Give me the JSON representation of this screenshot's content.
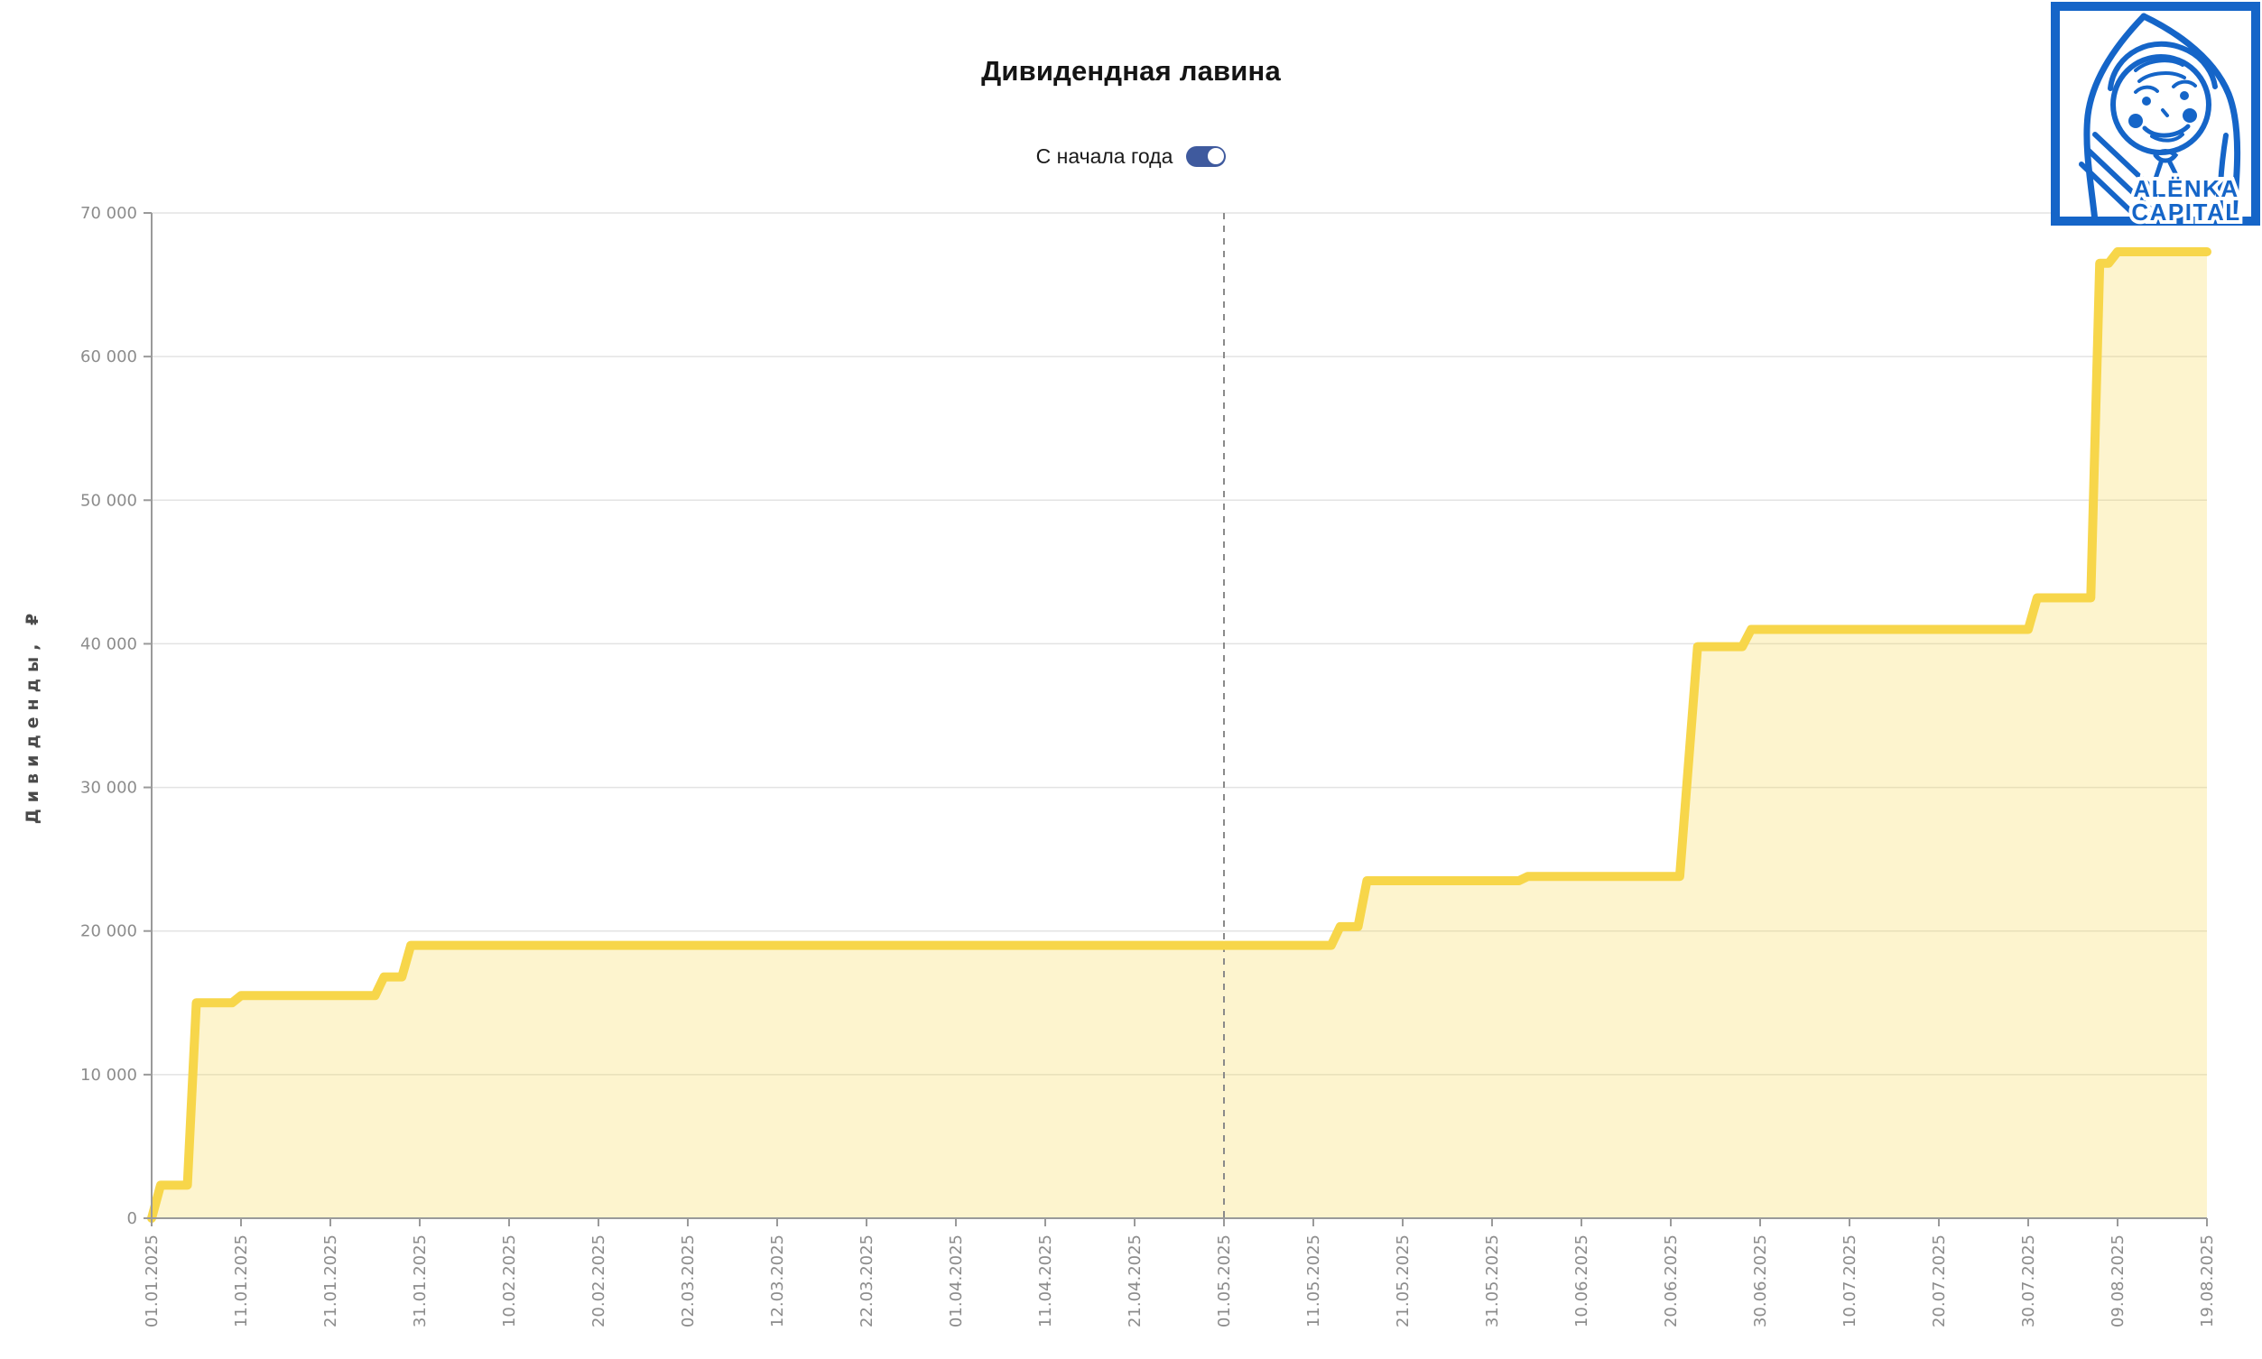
{
  "header": {
    "title": "Дивидендная лавина"
  },
  "controls": {
    "period_toggle": {
      "label": "С начала года",
      "state": "on",
      "on_color": "#3F5A9E"
    }
  },
  "logo": {
    "line1": "ALËNKA",
    "line2": "CAPITAL",
    "color": "#1565C8"
  },
  "chart_data": {
    "type": "area",
    "title": "Дивидендная лавина",
    "xlabel": "",
    "ylabel": "Дивиденды, ₽",
    "ylim": [
      0,
      70000
    ],
    "yticks": [
      0,
      10000,
      20000,
      30000,
      40000,
      50000,
      60000,
      70000
    ],
    "grid": "horizontal",
    "legend": "none",
    "vline_marker_date": "01.05.2025",
    "x_tick_labels": [
      "01.01.2025",
      "11.01.2025",
      "21.01.2025",
      "31.01.2025",
      "10.02.2025",
      "20.02.2025",
      "02.03.2025",
      "12.03.2025",
      "22.03.2025",
      "01.04.2025",
      "11.04.2025",
      "21.04.2025",
      "01.05.2025",
      "11.05.2025",
      "21.05.2025",
      "31.05.2025",
      "10.06.2025",
      "20.06.2025",
      "30.06.2025",
      "10.07.2025",
      "20.07.2025",
      "30.07.2025",
      "09.08.2025",
      "19.08.2025"
    ],
    "series": [
      {
        "name": "Дивиденды",
        "points": [
          [
            "01.01.2025",
            0
          ],
          [
            "02.01.2025",
            2300
          ],
          [
            "05.01.2025",
            2300
          ],
          [
            "06.01.2025",
            15000
          ],
          [
            "10.01.2025",
            15000
          ],
          [
            "11.01.2025",
            15500
          ],
          [
            "26.01.2025",
            15500
          ],
          [
            "27.01.2025",
            16800
          ],
          [
            "29.01.2025",
            16800
          ],
          [
            "30.01.2025",
            19000
          ],
          [
            "13.05.2025",
            19000
          ],
          [
            "14.05.2025",
            20300
          ],
          [
            "16.05.2025",
            20300
          ],
          [
            "17.05.2025",
            23500
          ],
          [
            "03.06.2025",
            23500
          ],
          [
            "04.06.2025",
            23800
          ],
          [
            "21.06.2025",
            23800
          ],
          [
            "23.06.2025",
            39800
          ],
          [
            "28.06.2025",
            39800
          ],
          [
            "29.06.2025",
            41000
          ],
          [
            "30.07.2025",
            41000
          ],
          [
            "31.07.2025",
            43200
          ],
          [
            "06.08.2025",
            43200
          ],
          [
            "07.08.2025",
            66500
          ],
          [
            "08.08.2025",
            66500
          ],
          [
            "09.08.2025",
            67300
          ],
          [
            "19.08.2025",
            67300
          ]
        ]
      }
    ],
    "colors": {
      "line": "#F7D64A",
      "fill": "rgba(247,214,74,0.27)",
      "grid": "#E3E3E3",
      "axis": "#9A9A9A",
      "tick_text": "#8C8C8C",
      "axis_title_text": "#4A4A4A",
      "marker": "#8A8A8A"
    }
  }
}
